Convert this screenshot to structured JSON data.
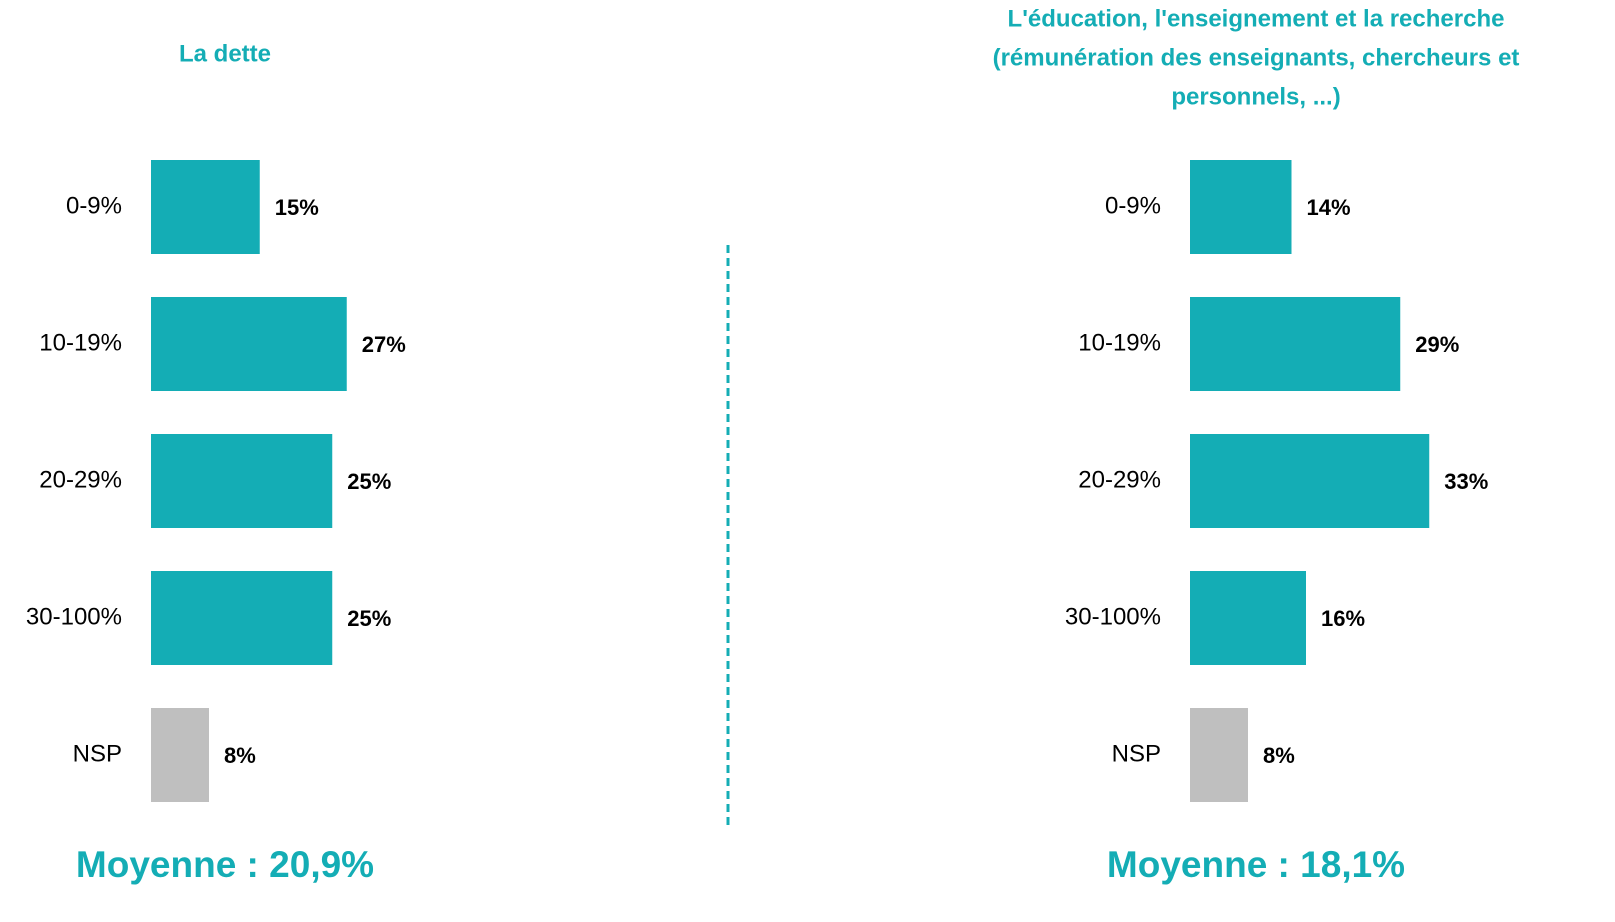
{
  "chart_data": [
    {
      "type": "bar",
      "title": [
        "La dette"
      ],
      "categories": [
        "0-9%",
        "10-19%",
        "20-29%",
        "30-100%",
        "NSP"
      ],
      "values": [
        15,
        27,
        25,
        25,
        8
      ],
      "value_labels": [
        "15%",
        "27%",
        "25%",
        "25%",
        "8%"
      ],
      "colors": [
        "#14adb5",
        "#14adb5",
        "#14adb5",
        "#14adb5",
        "#bfbfbf"
      ],
      "annotation": "Moyenne : 20,9%"
    },
    {
      "type": "bar",
      "title": [
        "L'éducation, l'enseignement et la recherche",
        "(rémunération des enseignants, chercheurs et",
        "personnels, ...)"
      ],
      "categories": [
        "0-9%",
        "10-19%",
        "20-29%",
        "30-100%",
        "NSP"
      ],
      "values": [
        14,
        29,
        33,
        16,
        8
      ],
      "value_labels": [
        "14%",
        "29%",
        "33%",
        "16%",
        "8%"
      ],
      "colors": [
        "#14adb5",
        "#14adb5",
        "#14adb5",
        "#14adb5",
        "#bfbfbf"
      ],
      "annotation": "Moyenne : 18,1%"
    }
  ]
}
